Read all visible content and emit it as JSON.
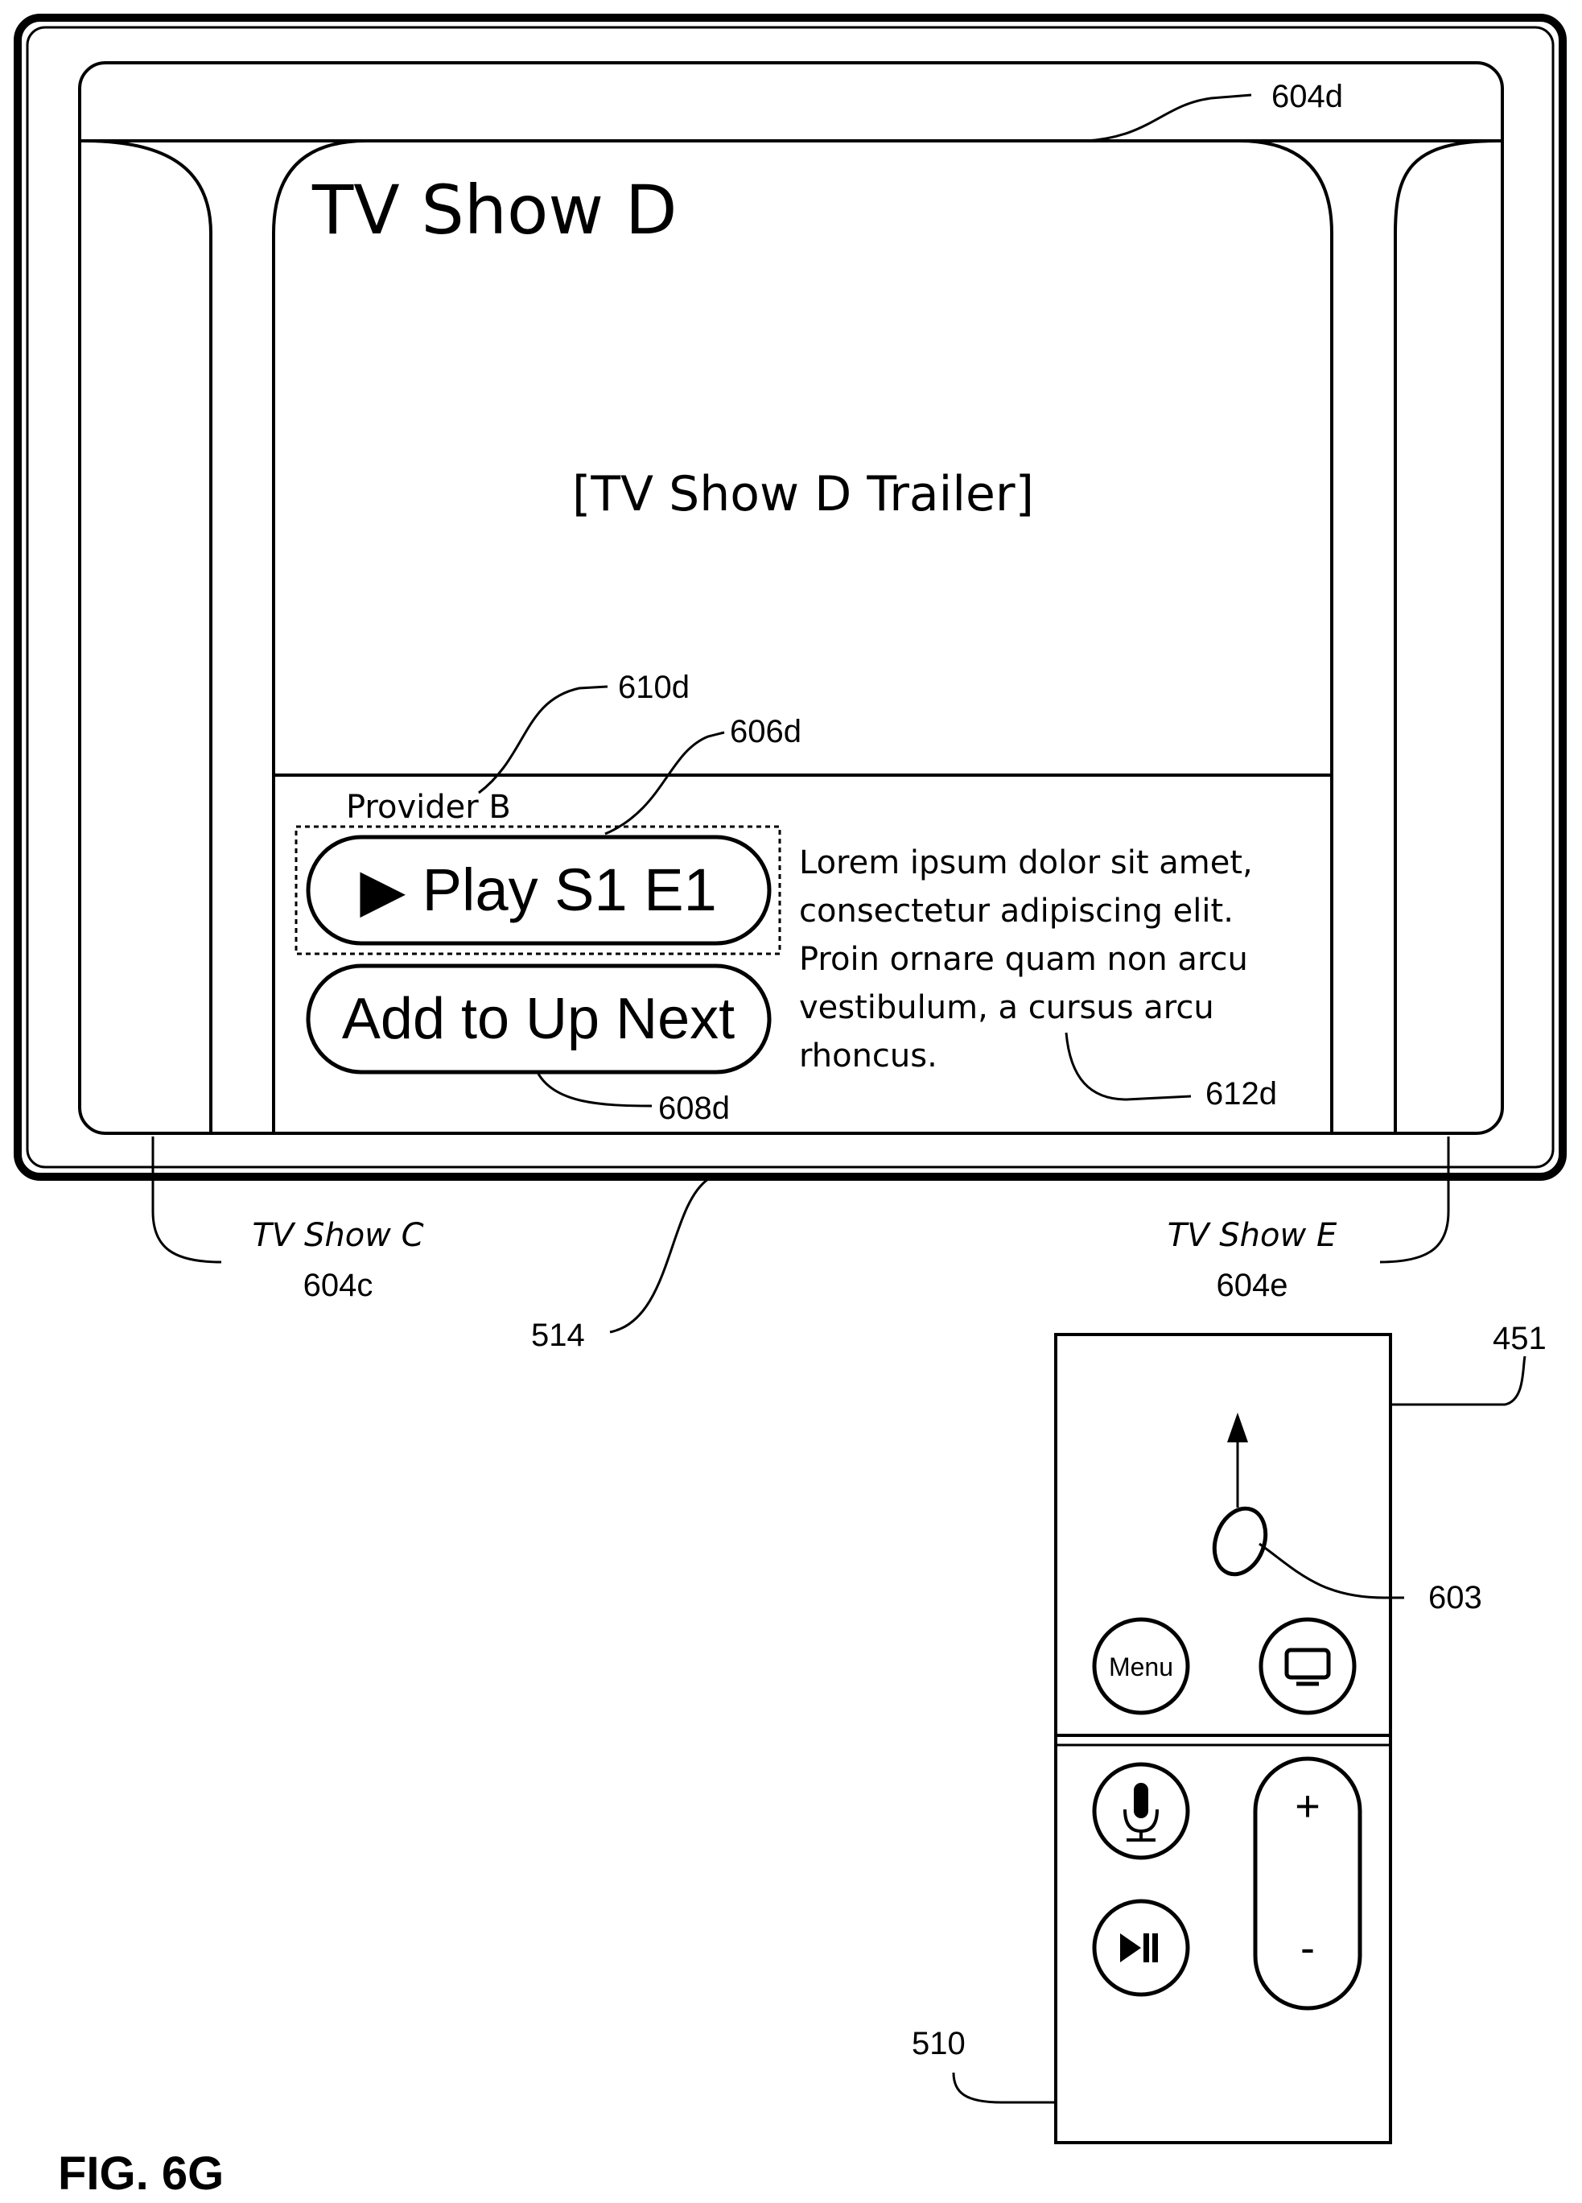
{
  "tv_screen": {
    "featured_title": "TV Show D",
    "trailer_label": "[TV Show D Trailer]",
    "provider_label": "Provider B",
    "play_button_label": "▶ Play S1 E1",
    "up_next_button_label": "Add to Up Next",
    "description_lines": [
      "Lorem ipsum dolor sit amet,",
      "consectetur adipiscing elit.",
      "Proin ornare quam non arcu",
      "vestibulum, a cursus arcu",
      "rhoncus."
    ],
    "left_item": {
      "title": "TV Show C",
      "ref": "604c"
    },
    "right_item": {
      "title": "TV Show E",
      "ref": "604e"
    }
  },
  "remote": {
    "menu_label": "Menu",
    "plus_label": "+",
    "minus_label": "-",
    "icons": [
      "tv-icon",
      "microphone-icon",
      "play-pause-icon",
      "swipe-arrow-icon"
    ]
  },
  "reference_labels": {
    "featured_item": "604d",
    "provider": "610d",
    "play_button": "606d",
    "up_next_button": "608d",
    "description": "612d",
    "display": "514",
    "touch_surface": "451",
    "contact": "603",
    "remote": "510"
  },
  "figure_label": "FIG. 6G"
}
